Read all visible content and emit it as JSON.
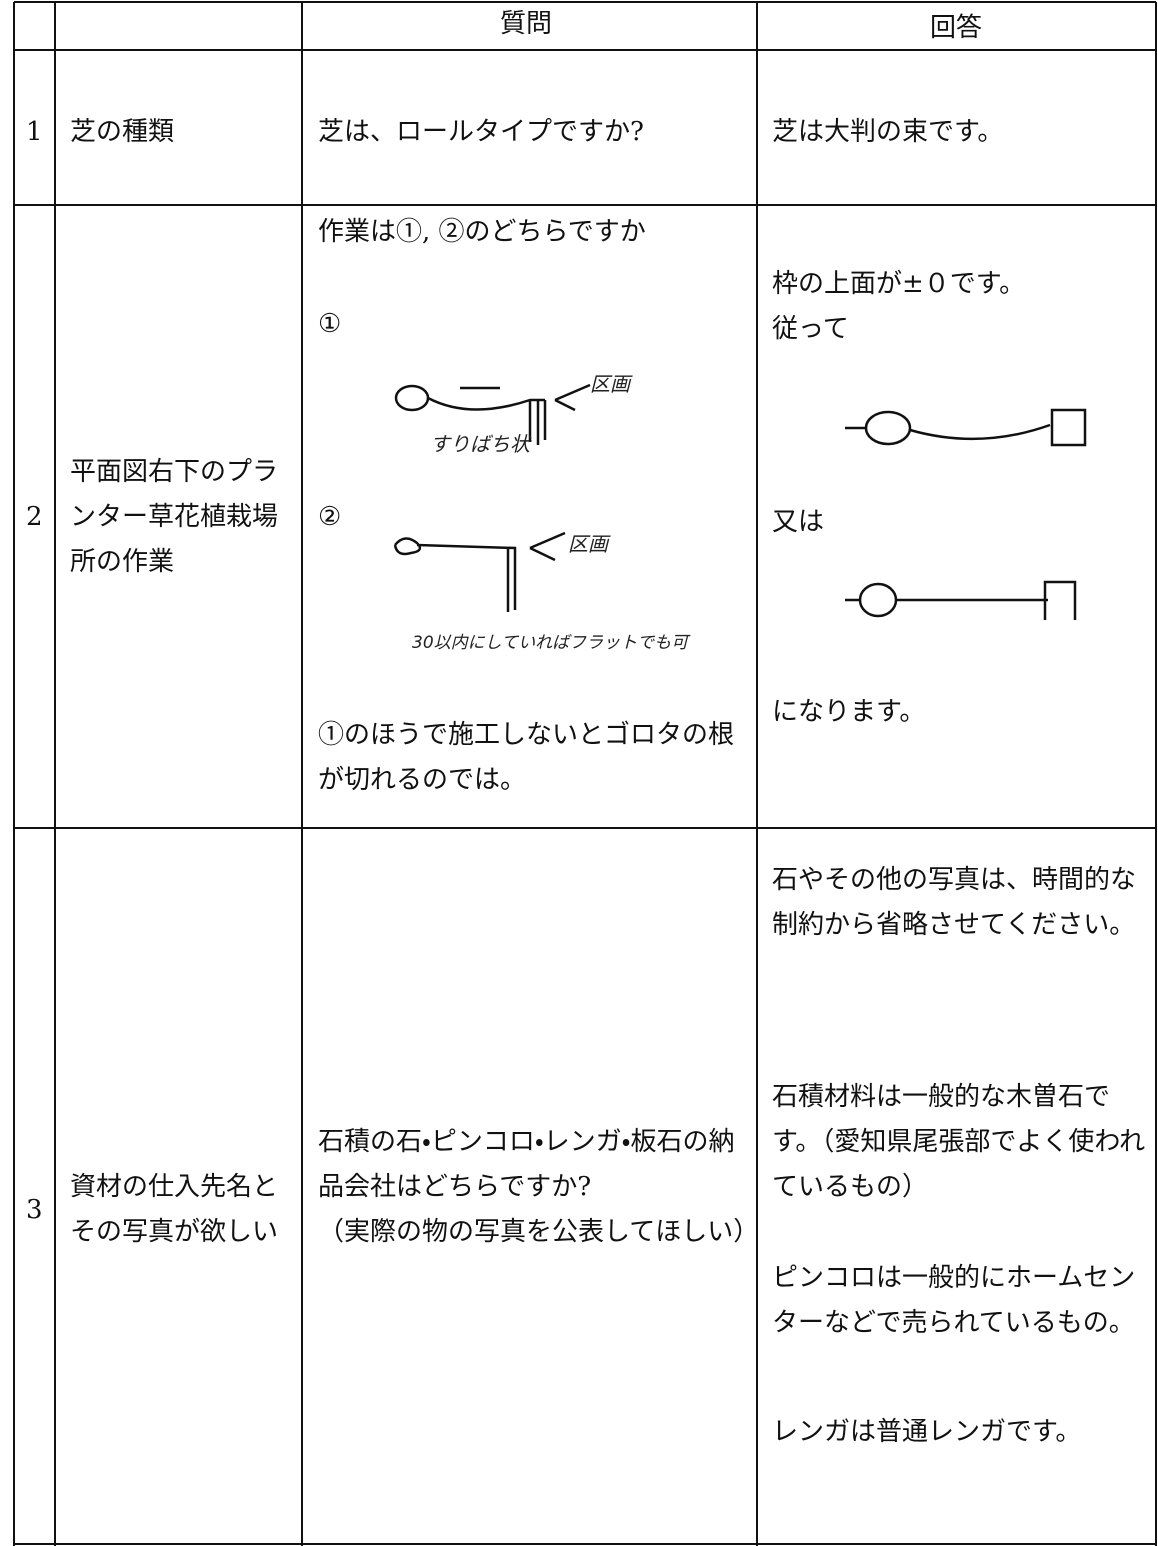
{
  "table": {
    "header": {
      "question": "質問",
      "answer": "回答"
    },
    "rows": [
      {
        "no": "1",
        "topic": "芝の種類",
        "question": [
          "芝は、ロールタイプですか?"
        ],
        "answer": [
          "芝は大判の束です。"
        ]
      },
      {
        "no": "2",
        "topic": "平面図右下のプランター草花植栽場所の作業",
        "question": [
          "作業は①, ②のどちらですか",
          "①",
          "②",
          "①のほうで施工しないとゴロタの根が切れるのでは。"
        ],
        "sketch_labels": [
          "区画",
          "すりばち状",
          "区画",
          "30以内にしていればフラットでも可"
        ],
        "answer": [
          "枠の上面が±０です。",
          "従って",
          "又は",
          "になります。"
        ]
      },
      {
        "no": "3",
        "topic": "資材の仕入先名とその写真が欲しい",
        "question": [
          "石積の石・ピンコロ・レンガ・板石の納品会社はどちらですか?",
          "（実際の物の写真を公表してほしい）"
        ],
        "answer": [
          "石やその他の写真は、時間的な制約から省略させてください。",
          "石積材料は一般的な木曽石です。（愛知県尾張部でよく使われているもの）",
          "ピンコロは一般的にホームセンターなどで売られているもの。",
          "レンガは普通レンガです。"
        ]
      }
    ]
  }
}
